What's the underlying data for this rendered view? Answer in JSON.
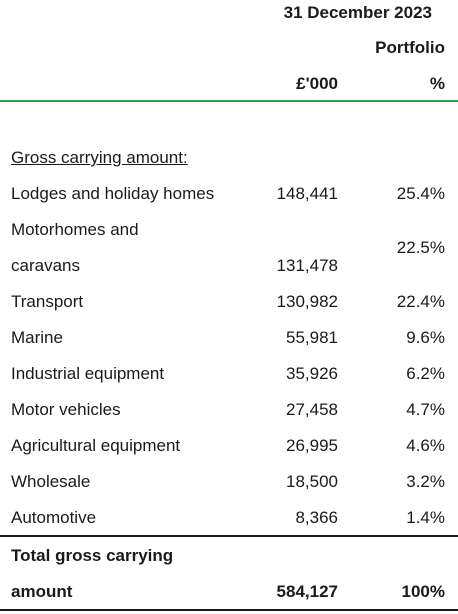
{
  "header": {
    "date": "31 December 2023",
    "portfolio": "Portfolio",
    "amount_unit": "£'000",
    "percent_unit": "%"
  },
  "section_title": "Gross carrying amount:",
  "rows": [
    {
      "label": "Lodges and holiday homes",
      "amount": "148,441",
      "percent": "25.4%"
    },
    {
      "label_line1": "Motorhomes and",
      "label_line2": "caravans",
      "amount": "131,478",
      "percent": "22.5%"
    },
    {
      "label": "Transport",
      "amount": "130,982",
      "percent": "22.4%"
    },
    {
      "label": "Marine",
      "amount": "55,981",
      "percent": "9.6%"
    },
    {
      "label": "Industrial equipment",
      "amount": "35,926",
      "percent": "6.2%"
    },
    {
      "label": "Motor vehicles",
      "amount": "27,458",
      "percent": "4.7%"
    },
    {
      "label": "Agricultural equipment",
      "amount": "26,995",
      "percent": "4.6%"
    },
    {
      "label": "Wholesale",
      "amount": "18,500",
      "percent": "3.2%"
    },
    {
      "label": "Automotive",
      "amount": "8,366",
      "percent": "1.4%"
    }
  ],
  "total": {
    "label_line1": "Total gross carrying",
    "label_line2": "amount",
    "amount": "584,127",
    "percent": "100%"
  }
}
